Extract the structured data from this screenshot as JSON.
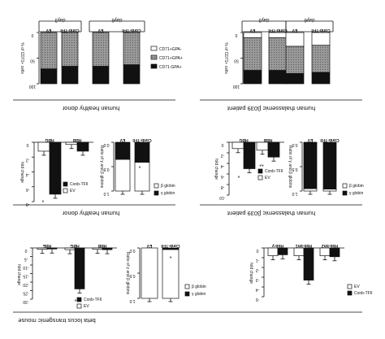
{
  "figure": {
    "row1": {
      "left_label": "human healthy donor",
      "right_label": "human thalassemic β039 patient",
      "day_labels": [
        "day3",
        "day6"
      ],
      "ylabel": "% of CD71+ cells",
      "group_labels": [
        "EV",
        "Conb-TFII"
      ],
      "ticks": [
        "0",
        "50",
        "100"
      ],
      "legend": [
        "CD71+GPA-",
        "CD71+GPA+",
        "CD71-GPA+"
      ]
    },
    "row2": {
      "left_label": "human healthy donor",
      "right_label": "human thalassemic β039 patient",
      "fold_ylabel": "fold change",
      "ratio_ylabel": "Ratio of γ and β globins",
      "globin_labels": [
        "HBG",
        "HBB"
      ],
      "group_labels": [
        "EV",
        "Conb-TFII"
      ],
      "legend_groups": [
        "EV",
        "Conb-TFII"
      ],
      "legend_globins": [
        "β globin",
        "γ globin"
      ],
      "left_ticks": [
        "0",
        "-2",
        "-4",
        "-6",
        "-8"
      ],
      "right_ticks": [
        "0",
        "-2",
        "-4",
        "-6",
        "-8",
        "-10"
      ],
      "ratio_ticks": [
        "0.0",
        "0.5",
        "1.0"
      ],
      "sig_left": "*",
      "sig_right": [
        "*",
        "**"
      ],
      "sig_ratio": "*"
    },
    "row3": {
      "bottom_label": "beta locus transgenic mouse",
      "globin_labels": [
        "HBE",
        "HBG",
        "HBB"
      ],
      "mouse_globin_labels": [
        "Hbb-y",
        "Hbb-bh1",
        "Hbb-bh2"
      ],
      "fold_ylabel": "fold change",
      "ratio_ylabel": "Ratio of γ and β globins",
      "group_labels": [
        "EV",
        "Conb-TFII"
      ],
      "legend_groups": [
        "EV",
        "Conb-TFII"
      ],
      "legend_globins": [
        "β globin",
        "γ globin"
      ],
      "left_ticks": [
        "0",
        "-5",
        "-10",
        "-15",
        "-20",
        "-25",
        "-30"
      ],
      "ratio_ticks": [
        "0.0",
        "0.5",
        "1.0"
      ],
      "right_ticks": [
        "0",
        "-1",
        "-2",
        "-3",
        "-4",
        "-5"
      ],
      "sig_left": "*",
      "sig_ratio": "*"
    }
  },
  "chart_data": [
    {
      "type": "bar",
      "title": "",
      "categories": [
        "EV day3",
        "Conb-TFII day3",
        "EV day6",
        "Conb-TFII day6"
      ],
      "series": [
        {
          "name": "CD71+GPA-",
          "values": [
            0,
            0,
            0,
            0
          ]
        },
        {
          "name": "CD71+GPA+",
          "values": [
            71,
            66,
            66,
            63
          ]
        },
        {
          "name": "CD71-GPA+",
          "values": [
            29,
            34,
            34,
            37
          ]
        }
      ],
      "ylim": [
        0,
        100
      ]
    },
    {
      "type": "bar",
      "title": "",
      "categories": [
        "EV day3",
        "Conb-TFII day3",
        "EV day6",
        "Conb-TFII day6"
      ],
      "series": [
        {
          "name": "CD71+GPA-",
          "values": [
            10,
            10,
            27,
            25
          ]
        },
        {
          "name": "CD71+GPA+",
          "values": [
            64,
            64,
            53,
            53
          ]
        },
        {
          "name": "CD71-GPA+",
          "values": [
            26,
            26,
            20,
            22
          ]
        }
      ],
      "ylim": [
        0,
        100
      ]
    },
    {
      "type": "bar",
      "categories": [
        "HBG",
        "HBB"
      ],
      "series": [
        {
          "name": "EV",
          "values": [
            -1.2,
            -0.3
          ]
        },
        {
          "name": "Conb-TFII",
          "values": [
            -7.0,
            -1.2
          ]
        }
      ],
      "ylim": [
        -8,
        0
      ]
    },
    {
      "type": "bar",
      "categories": [
        "EV",
        "Conb-TFII"
      ],
      "series": [
        {
          "name": "β globin",
          "values": [
            0.65,
            0.59
          ]
        },
        {
          "name": "γ globin",
          "values": [
            0.35,
            0.41
          ]
        }
      ],
      "ylim": [
        0,
        1.0
      ]
    },
    {
      "type": "bar",
      "categories": [
        "HBG",
        "HBB"
      ],
      "series": [
        {
          "name": "EV",
          "values": [
            -1.2,
            -1.5
          ]
        },
        {
          "name": "Conb-TFII",
          "values": [
            -5.0,
            -2.8
          ]
        }
      ],
      "ylim": [
        -10,
        0
      ]
    },
    {
      "type": "bar",
      "categories": [
        "EV",
        "Conb-TFII"
      ],
      "series": [
        {
          "name": "β globin",
          "values": [
            0.05,
            0.04
          ]
        },
        {
          "name": "γ globin",
          "values": [
            0.95,
            0.96
          ]
        }
      ],
      "ylim": [
        0,
        1.0
      ]
    },
    {
      "type": "bar",
      "categories": [
        "HBE",
        "HBG",
        "HBB"
      ],
      "series": [
        {
          "name": "EV",
          "values": [
            -0.8,
            -1.0,
            -0.8
          ]
        },
        {
          "name": "Conb-TFII",
          "values": [
            -0.6,
            -24.0,
            -1.0
          ]
        }
      ],
      "ylim": [
        -30,
        0
      ]
    },
    {
      "type": "bar",
      "categories": [
        "EV",
        "Conb-TFII"
      ],
      "series": [
        {
          "name": "β globin",
          "values": [
            1.0,
            0.97
          ]
        },
        {
          "name": "γ globin",
          "values": [
            0.0,
            0.03
          ]
        }
      ],
      "ylim": [
        0,
        1.0
      ]
    },
    {
      "type": "bar",
      "categories": [
        "Hbb-y",
        "Hbb-bh1",
        "Hbb-bh2"
      ],
      "series": [
        {
          "name": "EV",
          "values": [
            -0.8,
            -0.8,
            -0.8
          ]
        },
        {
          "name": "Conb-TFII",
          "values": [
            -0.7,
            -3.3,
            -0.9
          ]
        }
      ],
      "ylim": [
        -5,
        0
      ]
    }
  ]
}
